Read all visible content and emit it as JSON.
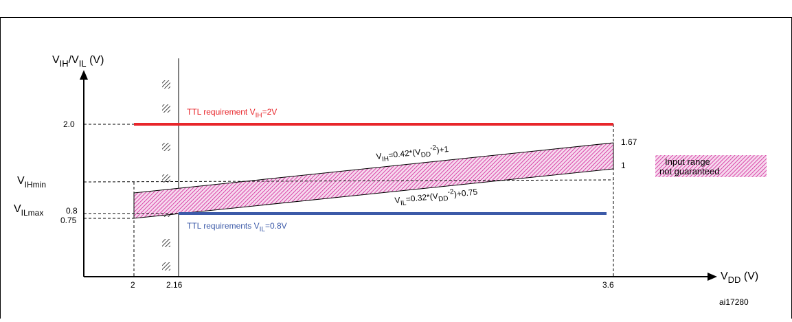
{
  "figure": {
    "caption_fragment": "",
    "id_label": "ai17280"
  },
  "axes": {
    "y_label": {
      "main": "V",
      "sub1": "IH",
      "mid": "/V",
      "sub2": "IL",
      "unit": " (V)"
    },
    "x_label": {
      "main": "V",
      "sub": "DD",
      "unit": " (V)"
    }
  },
  "y_ticks": {
    "v20": "2.0",
    "vihmin_main": "V",
    "vihmin_sub": "IHmin",
    "vilmax_main": "V",
    "vilmax_sub": "ILmax",
    "v08": "0.8",
    "v075": "0.75"
  },
  "x_ticks": {
    "x2": "2",
    "x216": "2.16",
    "x36": "3.6"
  },
  "right_values": {
    "r167": "1.67",
    "r1": "1"
  },
  "annotations": {
    "ttl_high": {
      "pre": "TTL requirement  V",
      "sub": "IH",
      "post": "=2V"
    },
    "ttl_low": {
      "pre": "TTL requirements V",
      "sub": "IL",
      "post": "=0.8V"
    },
    "vih_eq": {
      "a": "V",
      "b": "IH",
      "c": "=0.42*(V",
      "d": "DD",
      "e": "-2",
      "f": ")+1"
    },
    "vil_eq": {
      "a": "V",
      "b": "IL",
      "c": "=0.32*(V",
      "d": "DD",
      "e": "-2",
      "f": ")+0.75"
    }
  },
  "legend": {
    "line1": "Input range",
    "line2": "not guaranteed"
  },
  "colors": {
    "ttl_high": "#e8262b",
    "ttl_low": "#3c5aa8",
    "hatch": "#d21f96",
    "hatch_bg": "#f6d9ee"
  }
}
